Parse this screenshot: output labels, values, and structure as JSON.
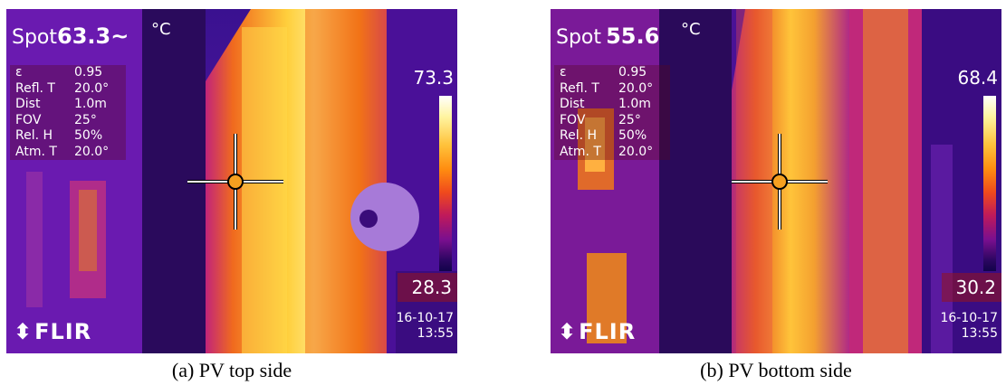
{
  "figures": [
    {
      "spot_label": "Spot",
      "spot_value": "63.3~",
      "unit": "°C",
      "params": [
        {
          "k": "ε",
          "v": "0.95"
        },
        {
          "k": "Refl. T",
          "v": "20.0°"
        },
        {
          "k": "Dist",
          "v": "1.0m"
        },
        {
          "k": "FOV",
          "v": "25°"
        },
        {
          "k": "Rel. H",
          "v": "50%"
        },
        {
          "k": "Atm. T",
          "v": "20.0°"
        }
      ],
      "scale_max": "73.3",
      "scale_min": "28.3",
      "date": "16-10-17",
      "time": "13:55",
      "logo": "FLIR",
      "caption": "(a) PV top side"
    },
    {
      "spot_label": "Spot",
      "spot_value": "55.6",
      "unit": "°C",
      "params": [
        {
          "k": "ε",
          "v": "0.95"
        },
        {
          "k": "Refl. T",
          "v": "20.0°"
        },
        {
          "k": "Dist",
          "v": "1.0m"
        },
        {
          "k": "FOV",
          "v": "25°"
        },
        {
          "k": "Rel. H",
          "v": "50%"
        },
        {
          "k": "Atm. T",
          "v": "20.0°"
        }
      ],
      "scale_max": "68.4",
      "scale_min": "30.2",
      "date": "16-10-17",
      "time": "13:55",
      "logo": "FLIR",
      "caption": "(b) PV bottom side"
    }
  ]
}
